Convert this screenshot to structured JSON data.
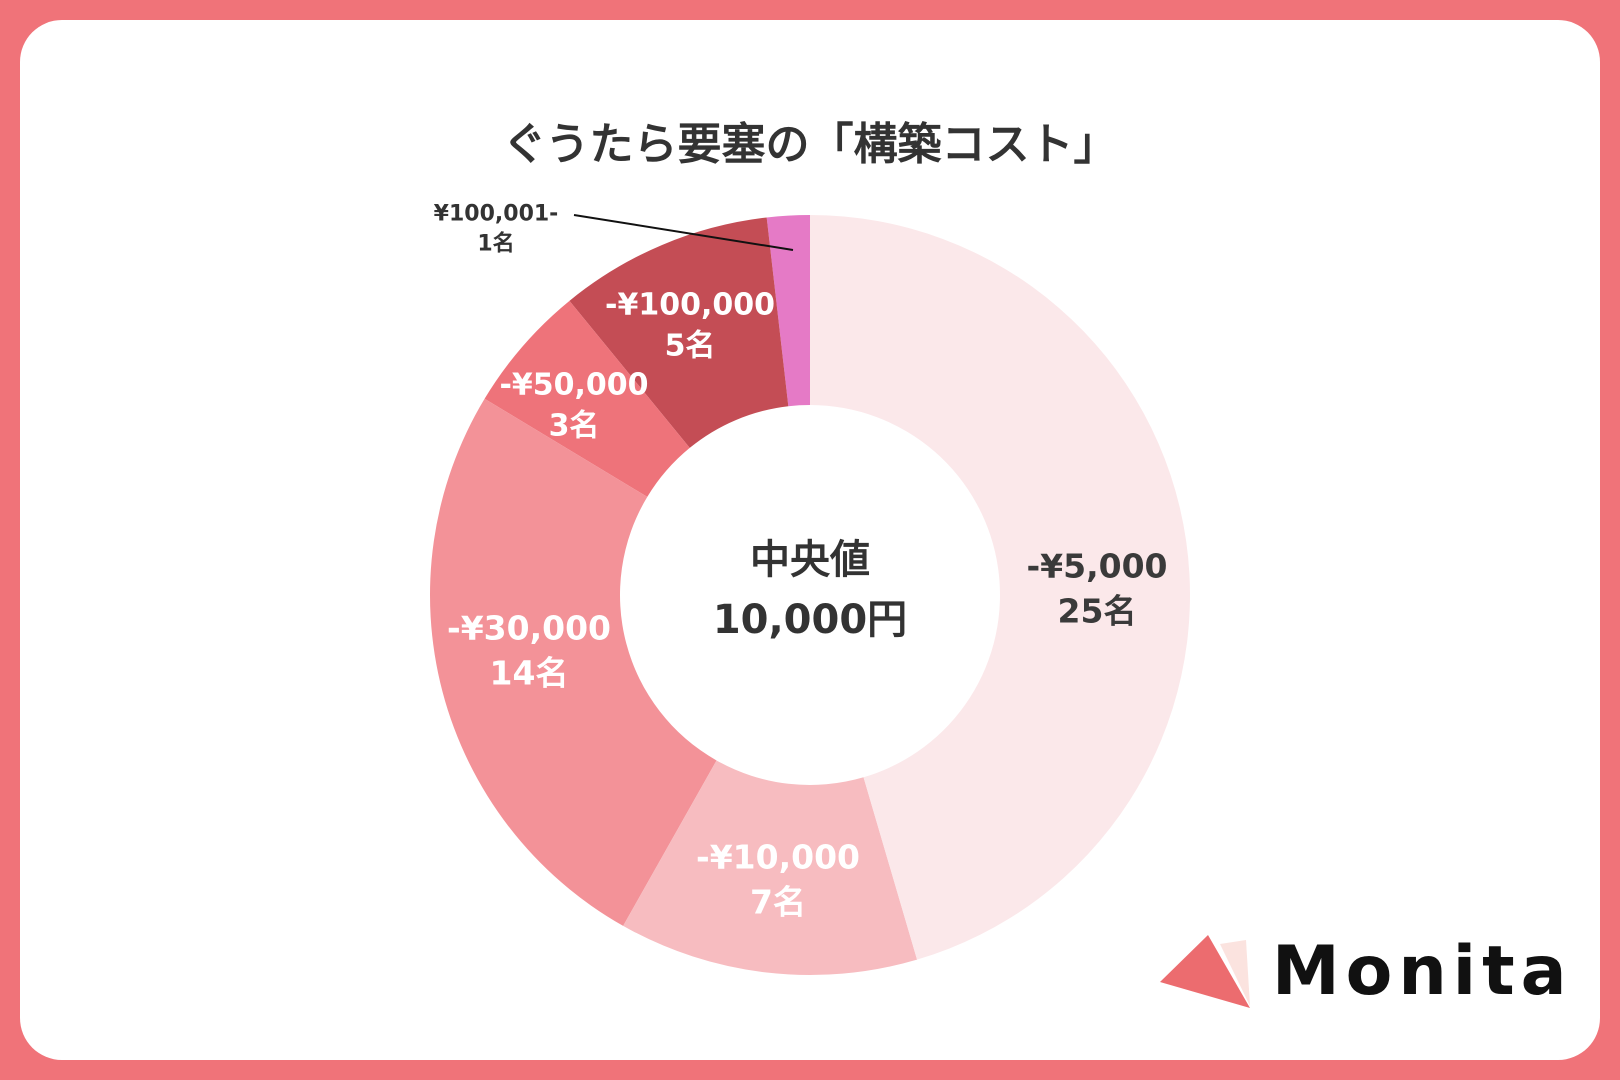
{
  "chart_data": {
    "type": "pie",
    "style": "donut",
    "title": "ぐうたら要塞の「構築コスト」",
    "center_label": {
      "line1": "中央値",
      "line2": "10,000円"
    },
    "categories": [
      "-¥5,000",
      "-¥10,000",
      "-¥30,000",
      "-¥50,000",
      "-¥100,000",
      "¥100,001-"
    ],
    "values": [
      25,
      7,
      14,
      3,
      5,
      1
    ],
    "value_labels": [
      "25名",
      "7名",
      "14名",
      "3名",
      "5名",
      "1名"
    ],
    "colors": [
      "#fbe8ea",
      "#f7bcc0",
      "#f39298",
      "#ee737a",
      "#c44d55",
      "#e57ac6"
    ],
    "start": "top",
    "direction": "clockwise"
  },
  "brand": {
    "name": "Monita",
    "frame_color": "#f07379"
  }
}
